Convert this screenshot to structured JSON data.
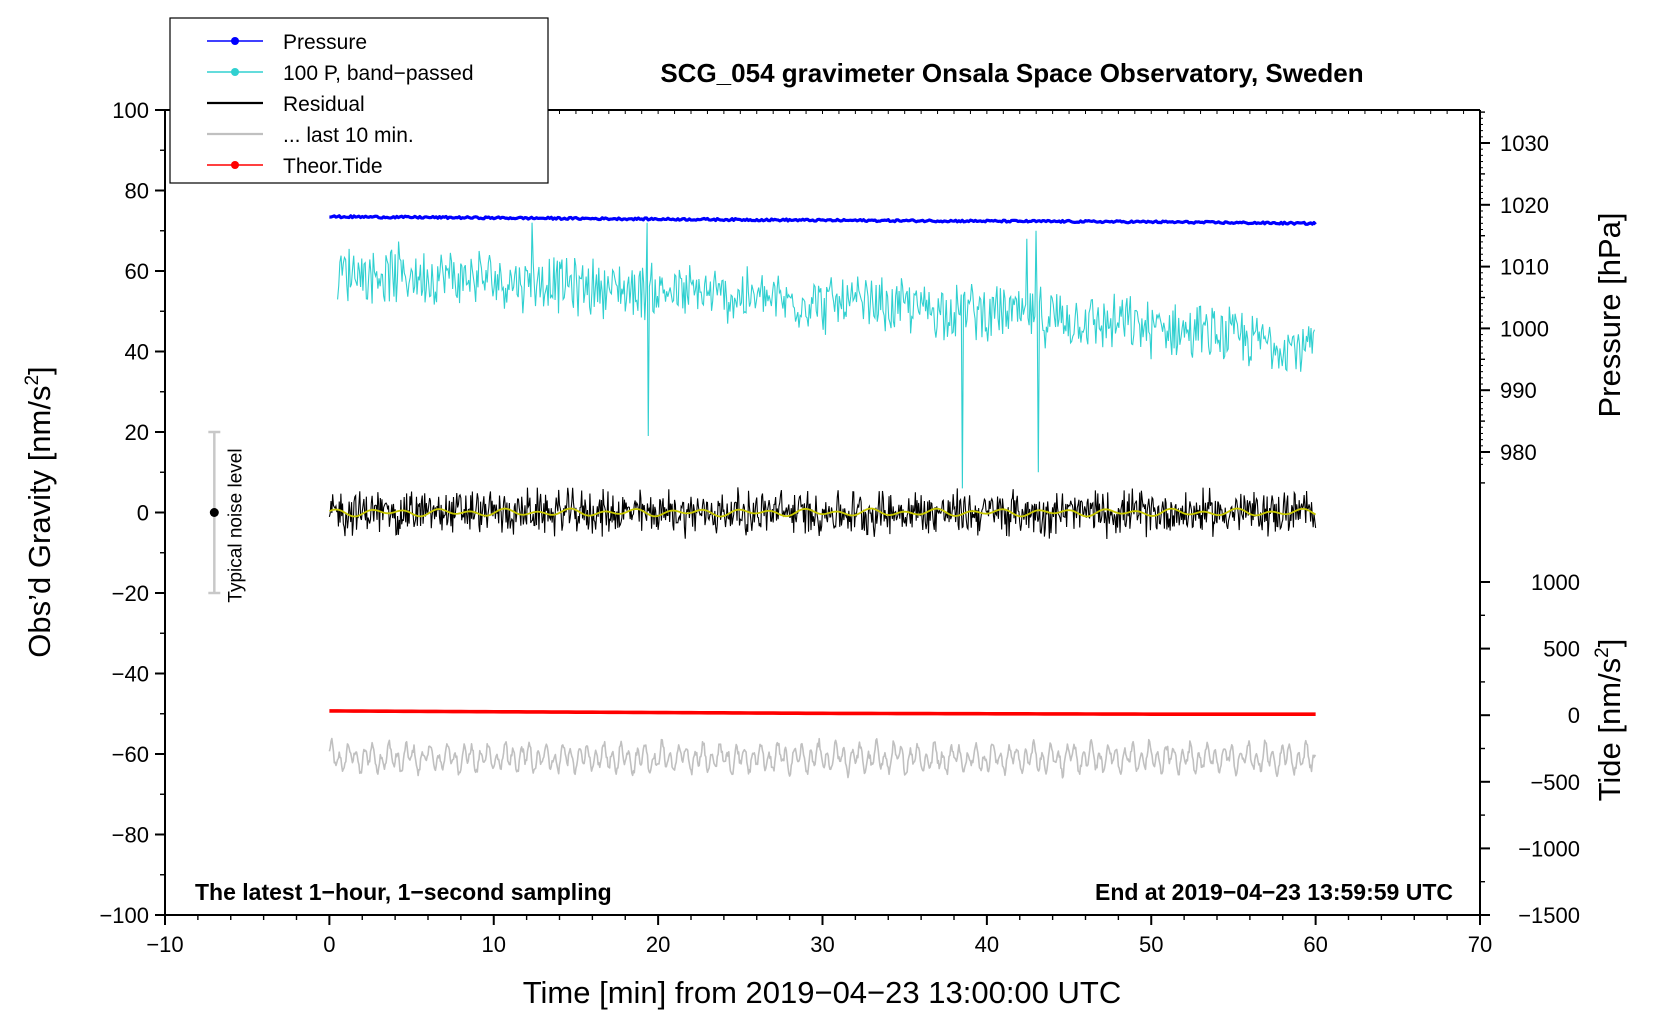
{
  "chart_data": {
    "type": "line",
    "title": "SCG_054 gravimeter Onsala Space Observatory, Sweden",
    "xlabel": "Time [min] from 2019−04−23 13:00:00 UTC",
    "ylabel_left": "Obs’d Gravity [nm/s",
    "ylabel_left_sup": "2",
    "ylabel_left_close": "]",
    "ylabel_right_top": "Pressure [hPa]",
    "ylabel_right_bottom": "Tide [nm/s",
    "ylabel_right_bottom_sup": "2",
    "ylabel_right_bottom_close": "]",
    "xlim": [
      -10,
      70
    ],
    "ylim": [
      -100,
      100
    ],
    "pressure_axis_range_hPa": [
      975,
      1035
    ],
    "tide_axis_range_nms2": [
      -1500,
      1000
    ],
    "x_ticks": [
      "−10",
      "0",
      "10",
      "20",
      "30",
      "40",
      "50",
      "60",
      "70"
    ],
    "x_tick_values": [
      -10,
      0,
      10,
      20,
      30,
      40,
      50,
      60,
      70
    ],
    "y_ticks": [
      "100",
      "80",
      "60",
      "40",
      "20",
      "0",
      "−20",
      "−40",
      "−60",
      "−80",
      "−100"
    ],
    "y_tick_values": [
      100,
      80,
      60,
      40,
      20,
      0,
      -20,
      -40,
      -60,
      -80,
      -100
    ],
    "pressure_ticks": [
      "1030",
      "1020",
      "1010",
      "1000",
      "990",
      "980"
    ],
    "pressure_tick_values": [
      1030,
      1020,
      1010,
      1000,
      990,
      980
    ],
    "tide_ticks": [
      "1000",
      "500",
      "0",
      "−500",
      "−1000",
      "−1500"
    ],
    "tide_tick_values": [
      1000,
      500,
      0,
      -500,
      -1000,
      -1500
    ],
    "annotation_left": "The latest 1−hour, 1−second sampling",
    "annotation_right": "End at 2019−04−23 13:59:59 UTC",
    "noise_label": "Typical noise level",
    "noise_bar": {
      "x": -7,
      "center": 0,
      "half_range": 20
    },
    "legend": [
      {
        "label": "Pressure",
        "color": "#0000ff",
        "marker": true
      },
      {
        "label": "100 P, band−passed",
        "color": "#30d0d0",
        "marker": true
      },
      {
        "label": "Residual",
        "color": "#000000",
        "marker": false
      },
      {
        "label": "... last 10 min.",
        "color": "#c0c0c0",
        "marker": false
      },
      {
        "label": "Theor.Tide",
        "color": "#ff0000",
        "marker": true
      }
    ],
    "series": [
      {
        "name": "Pressure",
        "color": "#0000ff",
        "x": [
          0,
          10,
          20,
          30,
          40,
          50,
          60
        ],
        "values": [
          73.5,
          73.2,
          72.9,
          72.6,
          72.4,
          72.2,
          71.8
        ]
      },
      {
        "name": "100 P, band−passed",
        "color": "#30d0d0",
        "x": [
          0,
          10,
          20,
          30,
          40,
          50,
          60
        ],
        "values": [
          60,
          58,
          55,
          52,
          50,
          46,
          41
        ],
        "amplitude": 6
      },
      {
        "name": "Residual",
        "color": "#000000",
        "x": [
          0,
          10,
          20,
          30,
          40,
          50,
          60
        ],
        "values": [
          0,
          0,
          0,
          0,
          0,
          0,
          0
        ],
        "amplitude": 4.5
      },
      {
        "name": "Residual smoothed",
        "color": "#c8c800",
        "x": [
          0,
          60
        ],
        "values": [
          0,
          0
        ]
      },
      {
        "name": "... last 10 min.",
        "color": "#c0c0c0",
        "x": [
          0,
          60
        ],
        "values": [
          -61,
          -61
        ],
        "amplitude": 4
      },
      {
        "name": "Theor.Tide",
        "color": "#ff0000",
        "x": [
          0,
          10,
          20,
          30,
          40,
          50,
          60
        ],
        "values": [
          -49.3,
          -49.5,
          -49.7,
          -49.9,
          -50.0,
          -50.1,
          -50.1
        ]
      }
    ],
    "spikes": [
      {
        "series": "100 P, band−passed",
        "x": 19.4,
        "value": 19
      },
      {
        "series": "100 P, band−passed",
        "x": 19.3,
        "value": 72
      },
      {
        "series": "100 P, band−passed",
        "x": 38.5,
        "value": 6
      },
      {
        "series": "100 P, band−passed",
        "x": 43.1,
        "value": 10
      },
      {
        "series": "100 P, band−passed",
        "x": 43.0,
        "value": 70
      },
      {
        "series": "100 P, band−passed",
        "x": 42.4,
        "value": 68
      },
      {
        "series": "100 P, band−passed",
        "x": 12.3,
        "value": 72
      }
    ]
  }
}
